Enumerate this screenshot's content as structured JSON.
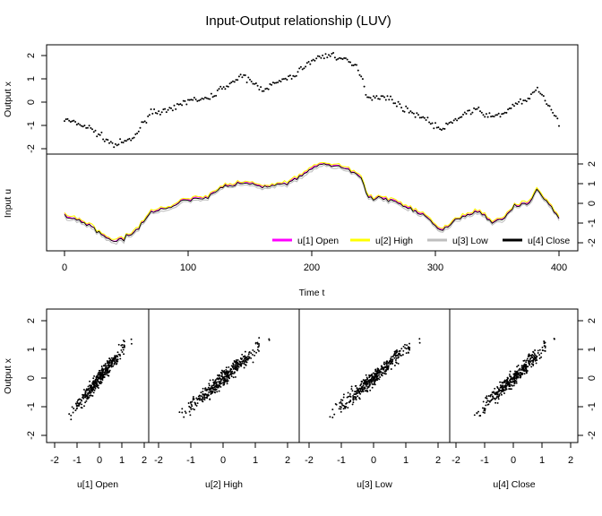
{
  "chart_data": [
    {
      "type": "scatter",
      "title": "Input-Output relationship (LUV)",
      "panel": "top",
      "ylabel": "Output x",
      "xlim": [
        -5,
        405
      ],
      "ylim": [
        -2.3,
        2.4
      ],
      "y_ticks": [
        "2",
        "1",
        "0",
        "-1",
        "-2"
      ],
      "grid": false,
      "series": [
        {
          "name": "Output x",
          "color": "#000000",
          "x": [
            0,
            20,
            40,
            55,
            70,
            85,
            100,
            115,
            130,
            145,
            160,
            175,
            185,
            195,
            205,
            215,
            225,
            235,
            240,
            245,
            255,
            265,
            275,
            290,
            305,
            315,
            325,
            335,
            345,
            355,
            365,
            375,
            382,
            390,
            400
          ],
          "y": [
            -0.75,
            -1.1,
            -1.85,
            -1.6,
            -0.4,
            -0.4,
            0.1,
            0.1,
            0.7,
            1.1,
            0.55,
            0.9,
            1.1,
            1.6,
            1.9,
            2.05,
            1.85,
            1.55,
            1.2,
            0.2,
            0.25,
            0.1,
            -0.3,
            -0.65,
            -1.2,
            -0.8,
            -0.45,
            -0.35,
            -0.65,
            -0.5,
            -0.05,
            0.05,
            0.65,
            -0.05,
            -0.9
          ]
        }
      ]
    },
    {
      "type": "line",
      "panel": "middle",
      "ylabel": "Input u",
      "xlabel": "Time t",
      "xlim": [
        -5,
        405
      ],
      "ylim": [
        -2.3,
        2.4
      ],
      "x_ticks": [
        "0",
        "100",
        "200",
        "300",
        "400"
      ],
      "y_ticks": [
        "2",
        "1",
        "0",
        "-1",
        "-2"
      ],
      "legend_position": "bottom-right",
      "series": [
        {
          "name": "u[1] Open",
          "color": "#ff00ff"
        },
        {
          "name": "u[2] High",
          "color": "#ffff00"
        },
        {
          "name": "u[3] Low",
          "color": "#bebebe"
        },
        {
          "name": "u[4] Close",
          "color": "#000000"
        }
      ],
      "note_x": [
        0,
        20,
        40,
        55,
        70,
        85,
        100,
        115,
        130,
        145,
        160,
        175,
        185,
        195,
        205,
        215,
        225,
        235,
        240,
        245,
        255,
        265,
        275,
        290,
        305,
        315,
        325,
        335,
        345,
        355,
        365,
        375,
        382,
        390,
        400
      ],
      "note_y": [
        -0.6,
        -1.1,
        -2.0,
        -1.6,
        -0.4,
        -0.2,
        0.2,
        0.3,
        0.85,
        1.05,
        0.8,
        0.95,
        1.1,
        1.5,
        2.0,
        1.9,
        1.8,
        1.55,
        1.3,
        0.3,
        0.25,
        0.2,
        -0.2,
        -0.6,
        -1.4,
        -0.9,
        -0.6,
        -0.45,
        -0.9,
        -0.75,
        -0.1,
        0.0,
        0.7,
        0.1,
        -0.8
      ]
    },
    {
      "type": "scatter",
      "panel": "bottom",
      "ylabel": "Output x",
      "xlim": [
        -2.3,
        2.4
      ],
      "ylim": [
        -2.3,
        2.4
      ],
      "x_ticks": [
        "-2",
        "-1",
        "0",
        "1",
        "2"
      ],
      "y_ticks": [
        "-2",
        "-1",
        "0",
        "1",
        "2"
      ],
      "facets": [
        "u[1] Open",
        "u[2] High",
        "u[3] Low",
        "u[4] Close"
      ],
      "approx_relationship": {
        "slope": 0.98,
        "intercept": 0.0,
        "spread": 0.25
      }
    }
  ],
  "legend_labels": [
    "u[1] Open",
    "u[2] High",
    "u[3] Low",
    "u[4] Close"
  ]
}
